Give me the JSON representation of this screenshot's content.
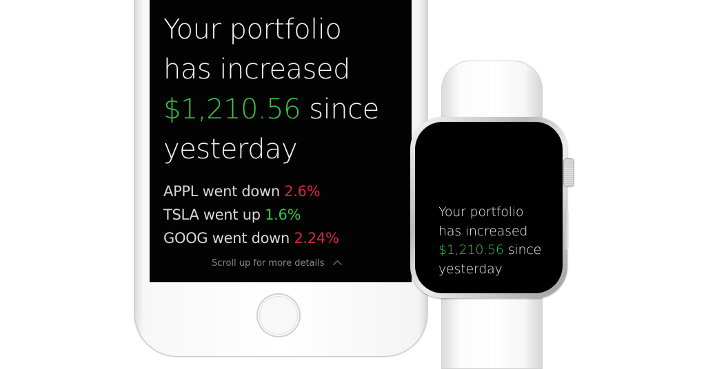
{
  "phone": {
    "headline": {
      "line1": "Your portfolio",
      "line2": "has increased",
      "amount": "$1,210.56",
      "after_amount": " since",
      "line4": "yesterday"
    },
    "changes": [
      {
        "ticker_text": "APPL went down ",
        "percent": "2.6%",
        "direction": "down"
      },
      {
        "ticker_text": "TSLA went up ",
        "percent": "1.6%",
        "direction": "up"
      },
      {
        "ticker_text": "GOOG went down ",
        "percent": "2.24%",
        "direction": "down"
      }
    ],
    "scroll_hint": "Scroll up for more details"
  },
  "watch": {
    "headline": {
      "line1": "Your portfolio",
      "line2": "has increased",
      "amount": "$1,210.56",
      "after_amount": " since",
      "line4": "yesterday"
    }
  },
  "colors": {
    "gain": "#39c545",
    "loss": "#d6283a",
    "screen_background": "#030303"
  },
  "icons": {
    "scroll_hint_icon": "chevron-up-icon",
    "home_button": "home-button"
  }
}
